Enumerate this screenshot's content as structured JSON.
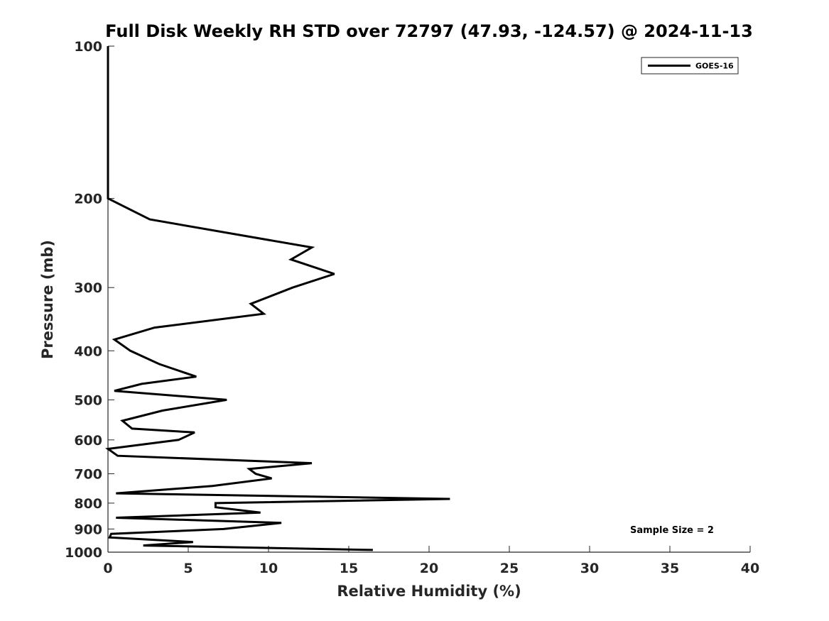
{
  "chart_data": {
    "type": "line",
    "title": "Full Disk Weekly RH STD over 72797 (47.93, -124.57) @ 2024-11-13",
    "xlabel": "Relative Humidity (%)",
    "ylabel": "Pressure (mb)",
    "xlim": [
      0,
      40
    ],
    "ylim": [
      100,
      1000
    ],
    "y_scale": "log",
    "y_reversed": true,
    "x_ticks": [
      0,
      5,
      10,
      15,
      20,
      25,
      30,
      35,
      40
    ],
    "y_ticks": [
      100,
      200,
      300,
      400,
      500,
      600,
      700,
      800,
      900,
      1000
    ],
    "grid": false,
    "legend_position": "top-right",
    "annotation": "Sample Size = 2",
    "series": [
      {
        "name": "GOES-16",
        "color": "#000000",
        "points": [
          [
            0,
            100
          ],
          [
            0,
            150
          ],
          [
            0,
            200
          ],
          [
            2.6,
            220
          ],
          [
            12.7,
            250
          ],
          [
            11.4,
            264
          ],
          [
            14.1,
            282
          ],
          [
            11.5,
            300
          ],
          [
            8.9,
            323
          ],
          [
            9.7,
            338
          ],
          [
            2.9,
            360
          ],
          [
            0.4,
            380
          ],
          [
            1.4,
            400
          ],
          [
            3.2,
            425
          ],
          [
            5.5,
            450
          ],
          [
            2.1,
            465
          ],
          [
            0.4,
            480
          ],
          [
            7.4,
            500
          ],
          [
            3.4,
            525
          ],
          [
            0.9,
            550
          ],
          [
            1.5,
            570
          ],
          [
            5.4,
            580
          ],
          [
            4.4,
            600
          ],
          [
            0,
            625
          ],
          [
            0.6,
            645
          ],
          [
            12.7,
            667
          ],
          [
            8.8,
            685
          ],
          [
            9.2,
            700
          ],
          [
            10.2,
            715
          ],
          [
            6.5,
            740
          ],
          [
            0.5,
            765
          ],
          [
            21.3,
            785
          ],
          [
            6.7,
            800
          ],
          [
            6.7,
            815
          ],
          [
            9.5,
            835
          ],
          [
            0.5,
            855
          ],
          [
            10.8,
            875
          ],
          [
            7.2,
            900
          ],
          [
            0.2,
            920
          ],
          [
            0.1,
            935
          ],
          [
            5.3,
            955
          ],
          [
            2.2,
            970
          ],
          [
            16.5,
            990
          ]
        ]
      }
    ]
  }
}
